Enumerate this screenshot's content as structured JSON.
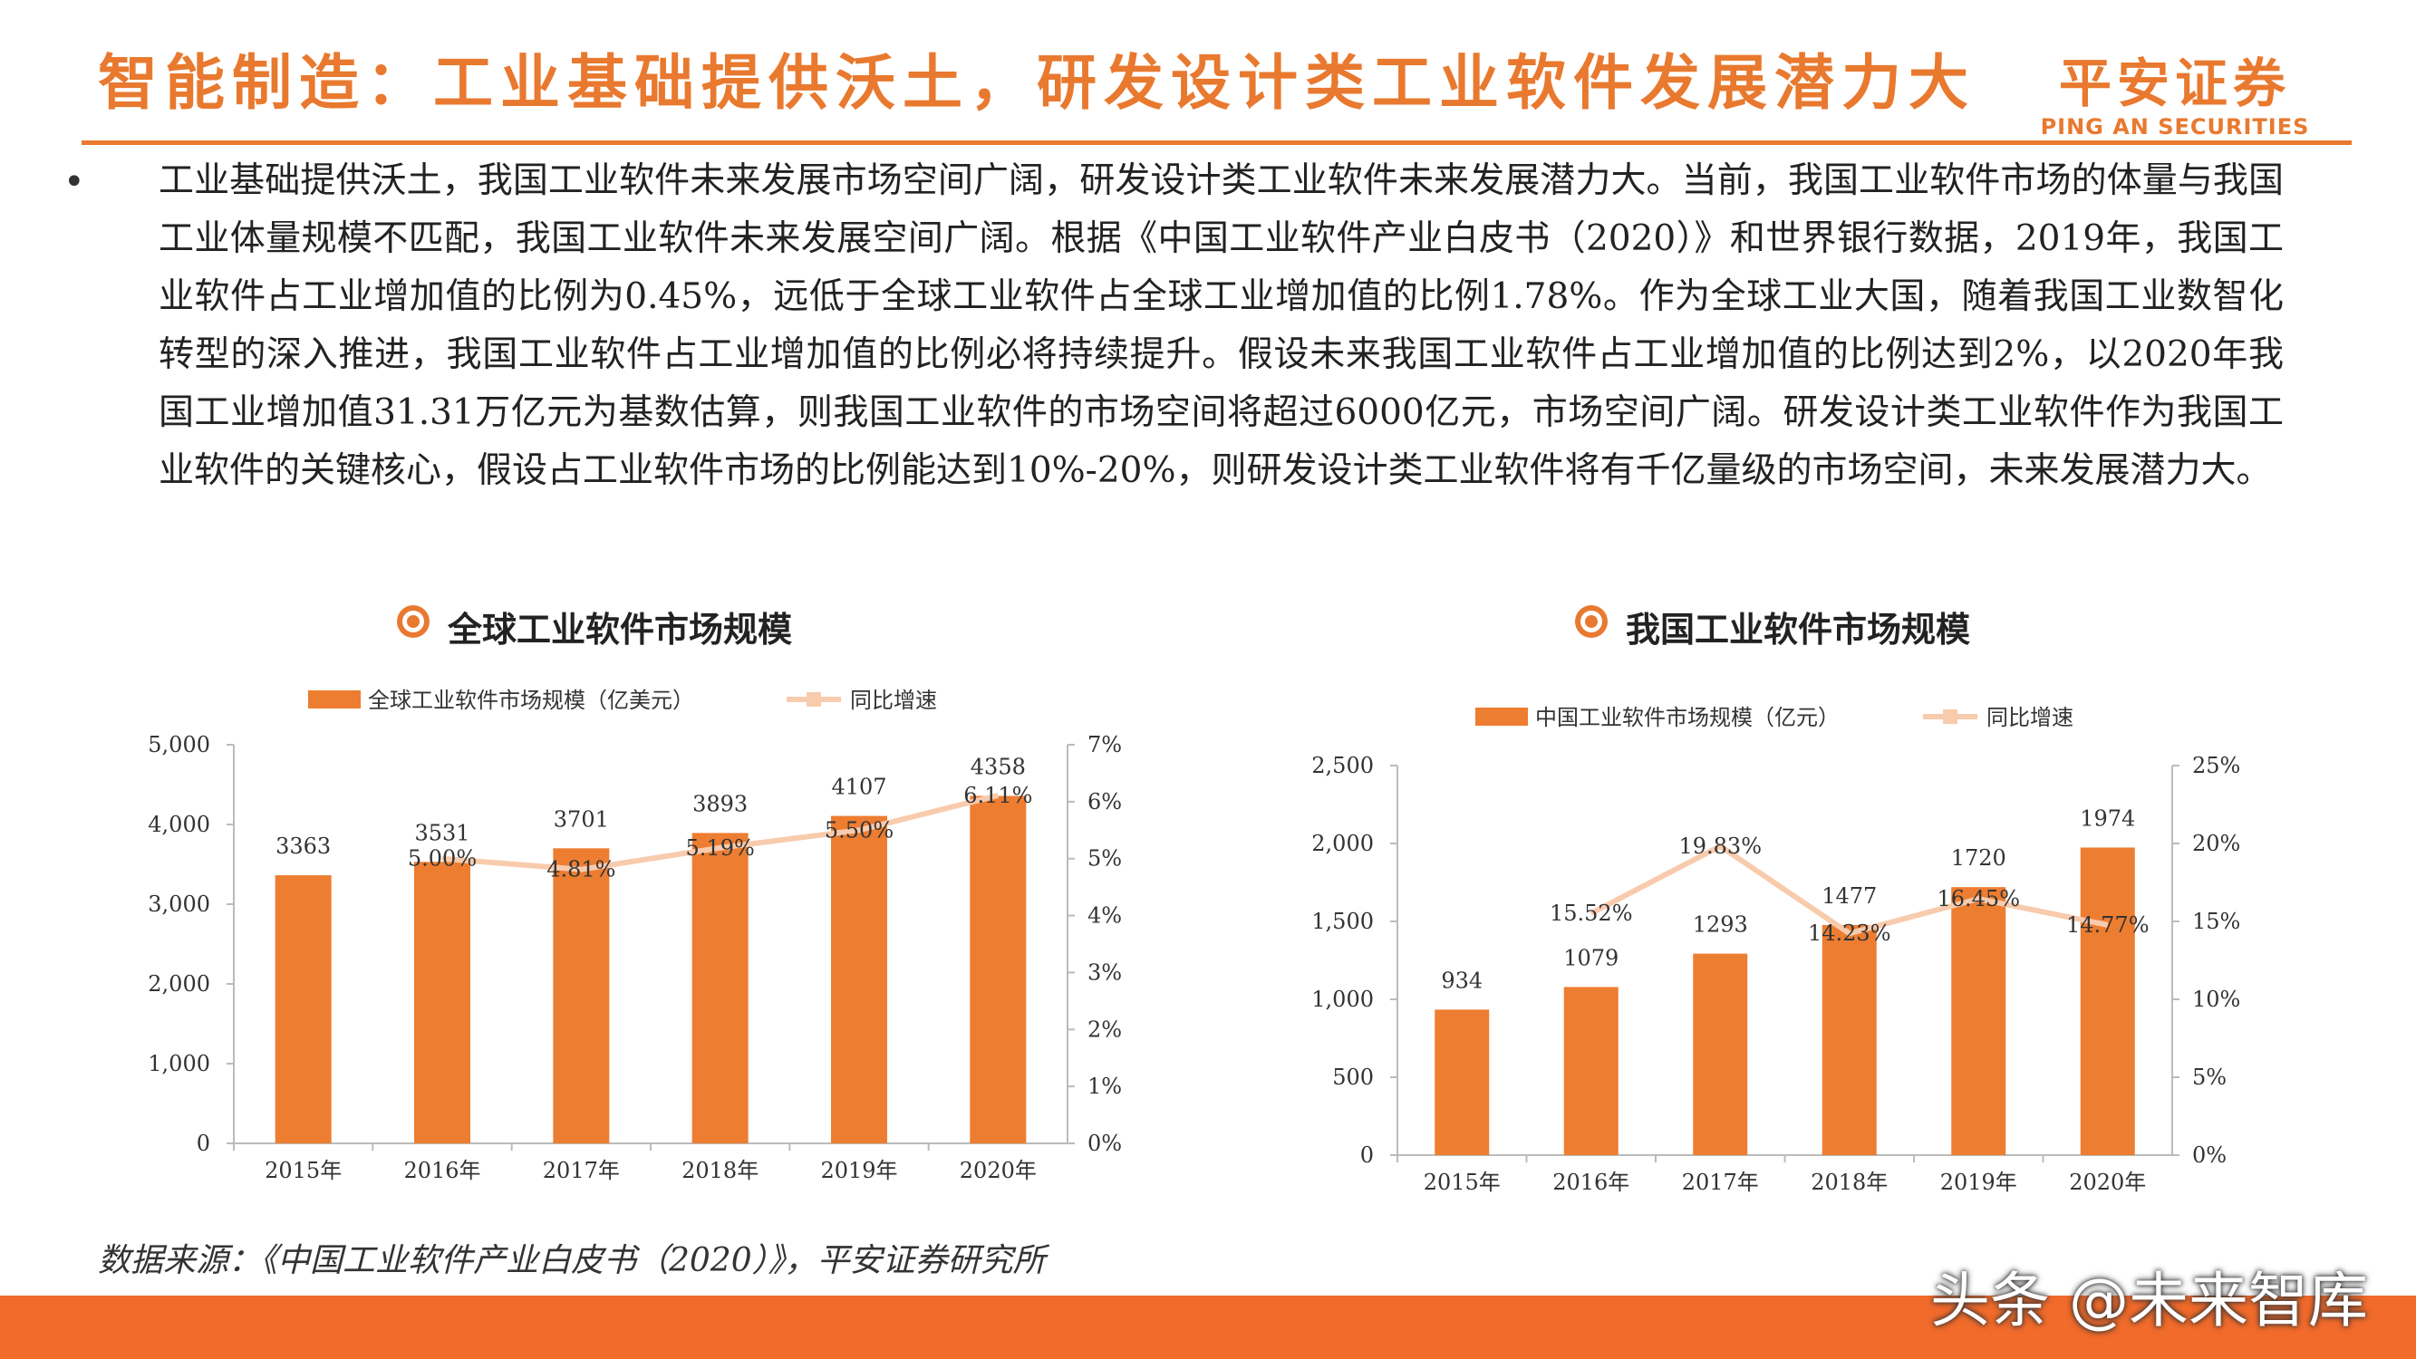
{
  "header": {
    "title": "智能制造：工业基础提供沃土，研发设计类工业软件发展潜力大",
    "logo_cn": "平安证券",
    "logo_en": "PING AN SECURITIES"
  },
  "body": {
    "bullet": "•",
    "paragraph": "工业基础提供沃土，我国工业软件未来发展市场空间广阔，研发设计类工业软件未来发展潜力大。当前，我国工业软件市场的体量与我国工业体量规模不匹配，我国工业软件未来发展空间广阔。根据《中国工业软件产业白皮书（2020）》和世界银行数据，2019年，我国工业软件占工业增加值的比例为0.45%，远低于全球工业软件占全球工业增加值的比例1.78%。作为全球工业大国，随着我国工业数智化转型的深入推进，我国工业软件占工业增加值的比例必将持续提升。假设未来我国工业软件占工业增加值的比例达到2%，以2020年我国工业增加值31.31万亿元为基数估算，则我国工业软件的市场空间将超过6000亿元，市场空间广阔。研发设计类工业软件作为我国工业软件的关键核心，假设占工业软件市场的比例能达到10%-20%，则研发设计类工业软件将有千亿量级的市场空间，未来发展潜力大。"
  },
  "source": "数据来源：《中国工业软件产业白皮书（2020）》，平安证券研究所",
  "watermark": "头条 @未来智库",
  "colors": {
    "accent": "#e8792f",
    "bar": "#ed7d31",
    "line": "#f8cbad"
  },
  "chart_data": [
    {
      "type": "bar",
      "title": "全球工业软件市场规模",
      "categories": [
        "2015年",
        "2016年",
        "2017年",
        "2018年",
        "2019年",
        "2020年"
      ],
      "series": [
        {
          "name": "全球工业软件市场规模（亿美元）",
          "type": "bar",
          "axis": "left",
          "values": [
            3363,
            3531,
            3701,
            3893,
            4107,
            4358
          ],
          "labels": [
            "3363",
            "3531",
            "3701",
            "3893",
            "4107",
            "4358"
          ]
        },
        {
          "name": "同比增速",
          "type": "line",
          "axis": "right",
          "values": [
            null,
            5.0,
            4.81,
            5.19,
            5.5,
            6.11
          ],
          "labels": [
            "",
            "5.00%",
            "4.81%",
            "5.19%",
            "5.50%",
            "6.11%"
          ]
        }
      ],
      "ylim": [
        0,
        5000
      ],
      "yticks": [
        "0",
        "1,000",
        "2,000",
        "3,000",
        "4,000",
        "5,000"
      ],
      "y2lim": [
        0,
        7
      ],
      "y2ticks": [
        "0%",
        "1%",
        "2%",
        "3%",
        "4%",
        "5%",
        "6%",
        "7%"
      ],
      "legend": "top",
      "grid": false
    },
    {
      "type": "bar",
      "title": "我国工业软件市场规模",
      "categories": [
        "2015年",
        "2016年",
        "2017年",
        "2018年",
        "2019年",
        "2020年"
      ],
      "series": [
        {
          "name": "中国工业软件市场规模（亿元）",
          "type": "bar",
          "axis": "left",
          "values": [
            934,
            1079,
            1293,
            1477,
            1720,
            1974
          ],
          "labels": [
            "934",
            "1079",
            "1293",
            "1477",
            "1720",
            "1974"
          ]
        },
        {
          "name": "同比增速",
          "type": "line",
          "axis": "right",
          "values": [
            null,
            15.52,
            19.83,
            14.23,
            16.45,
            14.77
          ],
          "labels": [
            "",
            "15.52%",
            "19.83%",
            "14.23%",
            "16.45%",
            "14.77%"
          ]
        }
      ],
      "ylim": [
        0,
        2500
      ],
      "yticks": [
        "0",
        "500",
        "1,000",
        "1,500",
        "2,000",
        "2,500"
      ],
      "y2lim": [
        0,
        25
      ],
      "y2ticks": [
        "0%",
        "5%",
        "10%",
        "15%",
        "20%",
        "25%"
      ],
      "legend": "top",
      "grid": false
    }
  ]
}
